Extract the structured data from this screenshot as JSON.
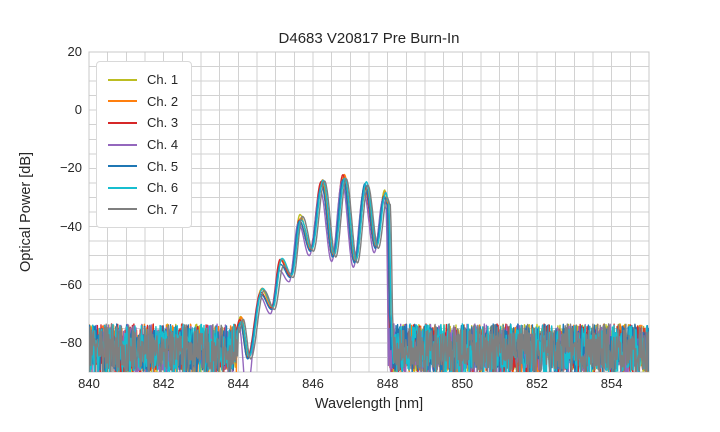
{
  "chart_data": {
    "type": "line",
    "title": "D4683 V20817 Pre Burn-In",
    "xlabel": "Wavelength [nm]",
    "ylabel": "Optical Power [dB]",
    "xlim": [
      840,
      855
    ],
    "ylim": [
      -90,
      20
    ],
    "xticks": [
      {
        "value": 840,
        "label": "840"
      },
      {
        "value": 842,
        "label": "842"
      },
      {
        "value": 844,
        "label": "844"
      },
      {
        "value": 846,
        "label": "846"
      },
      {
        "value": 848,
        "label": "848"
      },
      {
        "value": 850,
        "label": "850"
      },
      {
        "value": 852,
        "label": "852"
      },
      {
        "value": 854,
        "label": "854"
      }
    ],
    "yticks": [
      {
        "value": 20,
        "label": "20"
      },
      {
        "value": 0,
        "label": "0"
      },
      {
        "value": -20,
        "label": "−20"
      },
      {
        "value": -40,
        "label": "−40"
      },
      {
        "value": -60,
        "label": "−60"
      },
      {
        "value": -80,
        "label": "−80"
      }
    ],
    "grid": {
      "x_step_nm": 0.5,
      "y_step_db": 5,
      "color": "#d2d2d2",
      "border_color": "#c8c8c8"
    },
    "noise_region": {
      "left_end_nm": 843.92,
      "right_start_nm": 848.06,
      "floor_db_range": [
        -91.0,
        -73.5
      ]
    },
    "envelope_points_nm_db": [
      [
        843.92,
        -76
      ],
      [
        844.04,
        -72
      ],
      [
        844.24,
        -85
      ],
      [
        844.6,
        -62
      ],
      [
        844.88,
        -68
      ],
      [
        845.12,
        -52
      ],
      [
        845.38,
        -57
      ],
      [
        845.63,
        -37
      ],
      [
        845.92,
        -48
      ],
      [
        846.22,
        -25
      ],
      [
        846.52,
        -50
      ],
      [
        846.8,
        -23
      ],
      [
        847.1,
        -52
      ],
      [
        847.38,
        -25.5
      ],
      [
        847.66,
        -47
      ],
      [
        847.9,
        -28.5
      ],
      [
        847.98,
        -32
      ],
      [
        848.06,
        -76
      ]
    ],
    "peak_indices": [
      1,
      3,
      5,
      7,
      9,
      11,
      13,
      15
    ],
    "edge_null_indices": [
      2,
      17
    ],
    "series": [
      {
        "name": "Ch. 1",
        "color": "#bcbd22",
        "lambda_offset_nm": 0.02,
        "amp_offset_db": 0.5
      },
      {
        "name": "Ch. 2",
        "color": "#ff7f0e",
        "lambda_offset_nm": 0.04,
        "amp_offset_db": 0.0
      },
      {
        "name": "Ch. 3",
        "color": "#d62728",
        "lambda_offset_nm": 0.0,
        "amp_offset_db": 0.0
      },
      {
        "name": "Ch. 4",
        "color": "#9467bd",
        "lambda_offset_nm": -0.02,
        "amp_offset_db": -2.0,
        "deep_edge_null_db": -97
      },
      {
        "name": "Ch. 5",
        "color": "#1f77b4",
        "lambda_offset_nm": 0.01,
        "amp_offset_db": -0.5
      },
      {
        "name": "Ch. 6",
        "color": "#17becf",
        "lambda_offset_nm": 0.05,
        "amp_offset_db": 0.3
      },
      {
        "name": "Ch. 7",
        "color": "#7f7f7f",
        "lambda_offset_nm": 0.09,
        "amp_offset_db": -0.5
      }
    ],
    "legend_title": null,
    "legend_position": "upper-left",
    "grid_on": true
  }
}
